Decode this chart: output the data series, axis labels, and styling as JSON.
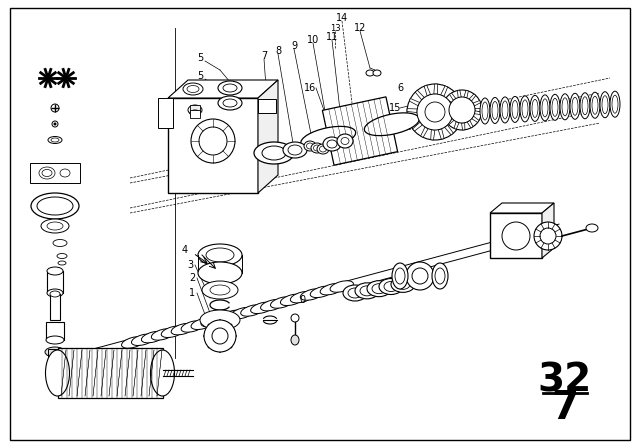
{
  "bg_color": "#ffffff",
  "line_color": "#000000",
  "page_number_top": "32",
  "page_number_bottom": "7",
  "fig_width": 6.4,
  "fig_height": 4.48,
  "dpi": 100
}
